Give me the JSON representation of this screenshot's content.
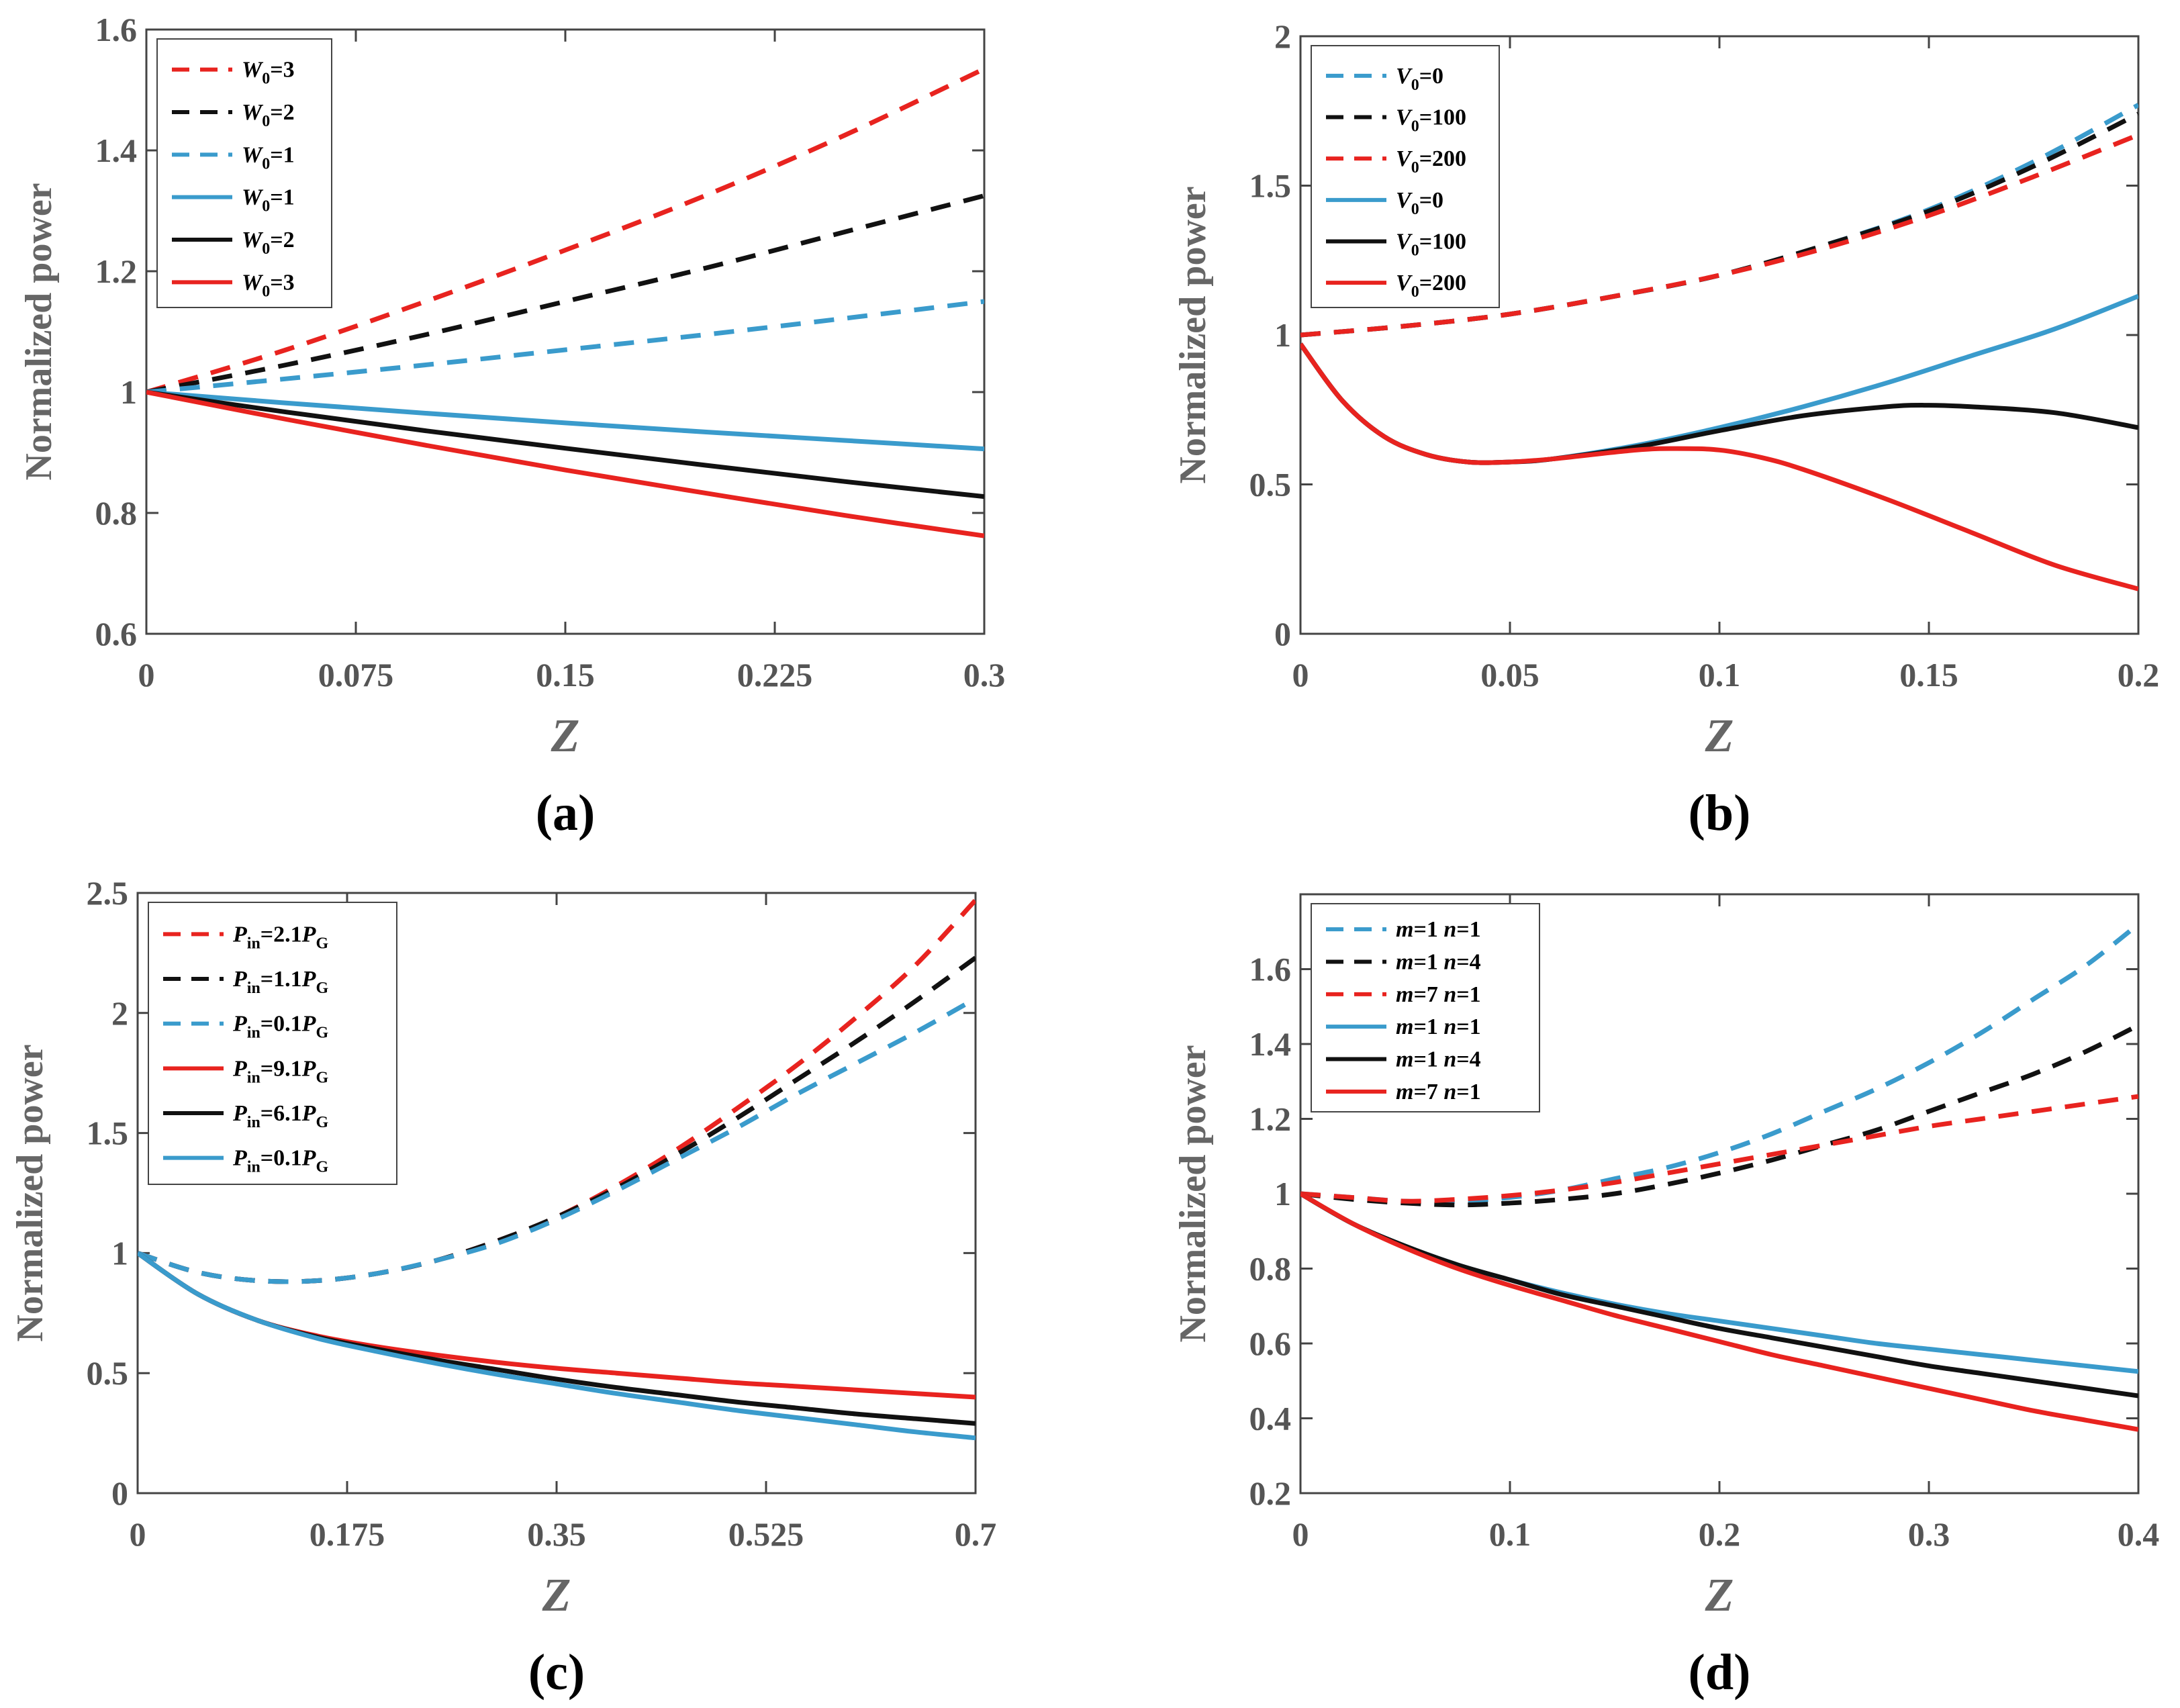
{
  "chart_data": [
    {
      "panel": "(a)",
      "type": "line",
      "xlabel": "Z",
      "ylabel": "Normalized power",
      "xlim": [
        0,
        0.3
      ],
      "ylim": [
        0.6,
        1.6
      ],
      "xticks": [
        0,
        0.075,
        0.15,
        0.225,
        0.3
      ],
      "xtick_labels": [
        "0",
        "0.075",
        "0.15",
        "0.225",
        "0.3"
      ],
      "yticks": [
        0.6,
        0.8,
        1,
        1.2,
        1.4,
        1.6
      ],
      "ytick_labels": [
        "0.6",
        "0.8",
        "1",
        "1.2",
        "1.4",
        "1.6"
      ],
      "legend": "top-left",
      "series": [
        {
          "base": "W",
          "sub": "0",
          "rest": "=3",
          "style": "dashed",
          "color": "#e8231f",
          "x": [
            0,
            0.05,
            0.1,
            0.15,
            0.2,
            0.25,
            0.3
          ],
          "y": [
            1,
            1.07,
            1.15,
            1.235,
            1.325,
            1.425,
            1.535
          ]
        },
        {
          "base": "W",
          "sub": "0",
          "rest": "=2",
          "style": "dashed",
          "color": "#111111",
          "x": [
            0,
            0.05,
            0.1,
            0.15,
            0.2,
            0.25,
            0.3
          ],
          "y": [
            1,
            1.045,
            1.095,
            1.15,
            1.205,
            1.265,
            1.325
          ]
        },
        {
          "base": "W",
          "sub": "0",
          "rest": "=1",
          "style": "dashed",
          "color": "#3a9bcc",
          "x": [
            0,
            0.05,
            0.1,
            0.15,
            0.2,
            0.25,
            0.3
          ],
          "y": [
            1,
            1.022,
            1.045,
            1.07,
            1.095,
            1.122,
            1.15
          ]
        },
        {
          "base": "W",
          "sub": "0",
          "rest": "=1",
          "style": "solid",
          "color": "#3a9bcc",
          "x": [
            0,
            0.05,
            0.1,
            0.15,
            0.2,
            0.25,
            0.3
          ],
          "y": [
            1,
            0.982,
            0.965,
            0.949,
            0.934,
            0.92,
            0.906
          ]
        },
        {
          "base": "W",
          "sub": "0",
          "rest": "=2",
          "style": "solid",
          "color": "#111111",
          "x": [
            0,
            0.05,
            0.1,
            0.15,
            0.2,
            0.25,
            0.3
          ],
          "y": [
            1,
            0.967,
            0.936,
            0.907,
            0.879,
            0.852,
            0.827
          ]
        },
        {
          "base": "W",
          "sub": "0",
          "rest": "=3",
          "style": "solid",
          "color": "#e8231f",
          "x": [
            0,
            0.05,
            0.1,
            0.15,
            0.2,
            0.25,
            0.3
          ],
          "y": [
            1,
            0.955,
            0.912,
            0.871,
            0.833,
            0.796,
            0.762
          ]
        }
      ]
    },
    {
      "panel": "(b)",
      "type": "line",
      "xlabel": "Z",
      "ylabel": "Normalized power",
      "xlim": [
        0,
        0.2
      ],
      "ylim": [
        0,
        2
      ],
      "xticks": [
        0,
        0.05,
        0.1,
        0.15,
        0.2
      ],
      "xtick_labels": [
        "0",
        "0.05",
        "0.1",
        "0.15",
        "0.2"
      ],
      "yticks": [
        0,
        0.5,
        1,
        1.5,
        2
      ],
      "ytick_labels": [
        "0",
        "0.5",
        "1",
        "1.5",
        "2"
      ],
      "legend": "top-left",
      "series": [
        {
          "base": "V",
          "sub": "0",
          "rest": "=0",
          "style": "dashed",
          "color": "#3a9bcc",
          "x": [
            0,
            0.025,
            0.05,
            0.075,
            0.1,
            0.125,
            0.15,
            0.175,
            0.2
          ],
          "y": [
            1,
            1.03,
            1.07,
            1.13,
            1.2,
            1.3,
            1.42,
            1.58,
            1.77
          ]
        },
        {
          "base": "V",
          "sub": "0",
          "rest": "=100",
          "style": "dashed",
          "color": "#111111",
          "x": [
            0,
            0.025,
            0.05,
            0.075,
            0.1,
            0.125,
            0.15,
            0.175,
            0.2
          ],
          "y": [
            1,
            1.03,
            1.07,
            1.13,
            1.2,
            1.3,
            1.415,
            1.565,
            1.74
          ]
        },
        {
          "base": "V",
          "sub": "0",
          "rest": "=200",
          "style": "dashed",
          "color": "#e8231f",
          "x": [
            0,
            0.025,
            0.05,
            0.075,
            0.1,
            0.125,
            0.15,
            0.175,
            0.2
          ],
          "y": [
            1,
            1.03,
            1.07,
            1.13,
            1.2,
            1.29,
            1.4,
            1.53,
            1.67
          ]
        },
        {
          "base": "V",
          "sub": "0",
          "rest": "=0",
          "style": "solid",
          "color": "#3a9bcc",
          "x": [
            0,
            0.01,
            0.02,
            0.03,
            0.04,
            0.05,
            0.06,
            0.08,
            0.1,
            0.12,
            0.14,
            0.16,
            0.18,
            0.2
          ],
          "y": [
            0.97,
            0.78,
            0.66,
            0.6,
            0.575,
            0.575,
            0.585,
            0.63,
            0.69,
            0.76,
            0.84,
            0.93,
            1.02,
            1.13
          ]
        },
        {
          "base": "V",
          "sub": "0",
          "rest": "=100",
          "style": "solid",
          "color": "#111111",
          "x": [
            0,
            0.01,
            0.02,
            0.03,
            0.04,
            0.05,
            0.06,
            0.08,
            0.1,
            0.12,
            0.14,
            0.15,
            0.16,
            0.18,
            0.2
          ],
          "y": [
            0.97,
            0.78,
            0.66,
            0.6,
            0.575,
            0.575,
            0.585,
            0.625,
            0.68,
            0.73,
            0.76,
            0.765,
            0.76,
            0.74,
            0.69
          ]
        },
        {
          "base": "V",
          "sub": "0",
          "rest": "=200",
          "style": "solid",
          "color": "#e8231f",
          "x": [
            0,
            0.01,
            0.02,
            0.03,
            0.04,
            0.05,
            0.06,
            0.08,
            0.09,
            0.1,
            0.11,
            0.12,
            0.14,
            0.16,
            0.18,
            0.2
          ],
          "y": [
            0.97,
            0.78,
            0.66,
            0.6,
            0.575,
            0.575,
            0.585,
            0.615,
            0.62,
            0.615,
            0.59,
            0.55,
            0.45,
            0.34,
            0.23,
            0.15
          ]
        }
      ]
    },
    {
      "panel": "(c)",
      "type": "line",
      "xlabel": "Z",
      "ylabel": "Normalized power",
      "xlim": [
        0,
        0.7
      ],
      "ylim": [
        0,
        2.5
      ],
      "xticks": [
        0,
        0.175,
        0.35,
        0.525,
        0.7
      ],
      "xtick_labels": [
        "0",
        "0.175",
        "0.35",
        "0.525",
        "0.7"
      ],
      "yticks": [
        0,
        0.5,
        1,
        1.5,
        2,
        2.5
      ],
      "ytick_labels": [
        "0",
        "0.5",
        "1",
        "1.5",
        "2",
        "2.5"
      ],
      "legend": "top-left",
      "series": [
        {
          "base": "P",
          "sub": "in",
          "rest": "=2.1",
          "base2": "P",
          "sub2": "G",
          "style": "dashed",
          "color": "#e8231f",
          "x": [
            0,
            0.05,
            0.1,
            0.15,
            0.2,
            0.25,
            0.3,
            0.35,
            0.4,
            0.45,
            0.5,
            0.55,
            0.6,
            0.65,
            0.7
          ],
          "y": [
            1,
            0.92,
            0.885,
            0.885,
            0.915,
            0.97,
            1.05,
            1.15,
            1.28,
            1.43,
            1.6,
            1.78,
            1.98,
            2.2,
            2.47
          ]
        },
        {
          "base": "P",
          "sub": "in",
          "rest": "=1.1",
          "base2": "P",
          "sub2": "G",
          "style": "dashed",
          "color": "#111111",
          "x": [
            0,
            0.05,
            0.1,
            0.15,
            0.2,
            0.25,
            0.3,
            0.35,
            0.4,
            0.45,
            0.5,
            0.55,
            0.6,
            0.65,
            0.7
          ],
          "y": [
            1,
            0.92,
            0.885,
            0.885,
            0.915,
            0.97,
            1.05,
            1.15,
            1.27,
            1.41,
            1.56,
            1.72,
            1.88,
            2.05,
            2.23
          ]
        },
        {
          "base": "P",
          "sub": "in",
          "rest": "=0.1",
          "base2": "P",
          "sub2": "G",
          "style": "dashed",
          "color": "#3a9bcc",
          "x": [
            0,
            0.05,
            0.1,
            0.15,
            0.2,
            0.25,
            0.3,
            0.35,
            0.4,
            0.45,
            0.5,
            0.55,
            0.6,
            0.65,
            0.7
          ],
          "y": [
            1,
            0.92,
            0.885,
            0.885,
            0.915,
            0.97,
            1.04,
            1.14,
            1.26,
            1.39,
            1.52,
            1.66,
            1.79,
            1.92,
            2.06
          ]
        },
        {
          "base": "P",
          "sub": "in",
          "rest": "=9.1",
          "base2": "P",
          "sub2": "G",
          "style": "solid",
          "color": "#e8231f",
          "x": [
            0,
            0.05,
            0.1,
            0.15,
            0.2,
            0.25,
            0.3,
            0.35,
            0.4,
            0.45,
            0.5,
            0.55,
            0.6,
            0.65,
            0.7
          ],
          "y": [
            1,
            0.83,
            0.72,
            0.655,
            0.61,
            0.575,
            0.545,
            0.52,
            0.5,
            0.48,
            0.46,
            0.445,
            0.43,
            0.415,
            0.4
          ]
        },
        {
          "base": "P",
          "sub": "in",
          "rest": "=6.1",
          "base2": "P",
          "sub2": "G",
          "style": "solid",
          "color": "#111111",
          "x": [
            0,
            0.05,
            0.1,
            0.15,
            0.2,
            0.25,
            0.3,
            0.35,
            0.4,
            0.45,
            0.5,
            0.55,
            0.6,
            0.65,
            0.7
          ],
          "y": [
            1,
            0.83,
            0.72,
            0.65,
            0.6,
            0.555,
            0.515,
            0.475,
            0.44,
            0.41,
            0.38,
            0.355,
            0.33,
            0.31,
            0.29
          ]
        },
        {
          "base": "P",
          "sub": "in",
          "rest": "=0.1",
          "base2": "P",
          "sub2": "G",
          "style": "solid",
          "color": "#3a9bcc",
          "x": [
            0,
            0.05,
            0.1,
            0.15,
            0.2,
            0.25,
            0.3,
            0.35,
            0.4,
            0.45,
            0.5,
            0.55,
            0.6,
            0.65,
            0.7
          ],
          "y": [
            1,
            0.83,
            0.72,
            0.645,
            0.59,
            0.54,
            0.495,
            0.455,
            0.415,
            0.38,
            0.345,
            0.315,
            0.285,
            0.255,
            0.23
          ]
        }
      ]
    },
    {
      "panel": "(d)",
      "type": "line",
      "xlabel": "Z",
      "ylabel": "Normalized power",
      "xlim": [
        0,
        0.4
      ],
      "ylim": [
        0.2,
        1.8
      ],
      "xticks": [
        0,
        0.1,
        0.2,
        0.3,
        0.4
      ],
      "xtick_labels": [
        "0",
        "0.1",
        "0.2",
        "0.3",
        "0.4"
      ],
      "yticks": [
        0.2,
        0.4,
        0.6,
        0.8,
        1,
        1.2,
        1.4,
        1.6
      ],
      "ytick_labels": [
        "0.2",
        "0.4",
        "0.6",
        "0.8",
        "1",
        "1.2",
        "1.4",
        "1.6"
      ],
      "legend": "top-left",
      "series": [
        {
          "m": "1",
          "n": "1",
          "style": "dashed",
          "color": "#3a9bcc",
          "x": [
            0,
            0.025,
            0.05,
            0.075,
            0.1,
            0.125,
            0.15,
            0.175,
            0.2,
            0.225,
            0.25,
            0.275,
            0.3,
            0.325,
            0.35,
            0.375,
            0.4
          ],
          "y": [
            1,
            0.99,
            0.98,
            0.98,
            0.99,
            1.01,
            1.04,
            1.07,
            1.11,
            1.16,
            1.22,
            1.28,
            1.35,
            1.43,
            1.52,
            1.61,
            1.72
          ]
        },
        {
          "m": "1",
          "n": "4",
          "style": "dashed",
          "color": "#111111",
          "x": [
            0,
            0.025,
            0.05,
            0.075,
            0.1,
            0.125,
            0.15,
            0.175,
            0.2,
            0.225,
            0.25,
            0.275,
            0.3,
            0.325,
            0.35,
            0.375,
            0.4
          ],
          "y": [
            1,
            0.985,
            0.975,
            0.97,
            0.975,
            0.985,
            1.0,
            1.025,
            1.055,
            1.09,
            1.13,
            1.17,
            1.22,
            1.27,
            1.32,
            1.38,
            1.45
          ]
        },
        {
          "m": "7",
          "n": "1",
          "style": "dashed",
          "color": "#e8231f",
          "x": [
            0,
            0.025,
            0.05,
            0.075,
            0.1,
            0.125,
            0.15,
            0.175,
            0.2,
            0.225,
            0.25,
            0.275,
            0.3,
            0.325,
            0.35,
            0.375,
            0.4
          ],
          "y": [
            1,
            0.99,
            0.98,
            0.985,
            0.995,
            1.01,
            1.03,
            1.055,
            1.08,
            1.105,
            1.13,
            1.155,
            1.18,
            1.2,
            1.22,
            1.24,
            1.26
          ]
        },
        {
          "m": "1",
          "n": "1",
          "style": "solid",
          "color": "#3a9bcc",
          "x": [
            0,
            0.025,
            0.05,
            0.075,
            0.1,
            0.125,
            0.15,
            0.175,
            0.2,
            0.225,
            0.25,
            0.275,
            0.3,
            0.325,
            0.35,
            0.375,
            0.4
          ],
          "y": [
            1,
            0.92,
            0.86,
            0.81,
            0.77,
            0.735,
            0.705,
            0.68,
            0.66,
            0.64,
            0.62,
            0.6,
            0.585,
            0.57,
            0.555,
            0.54,
            0.525
          ]
        },
        {
          "m": "1",
          "n": "4",
          "style": "solid",
          "color": "#111111",
          "x": [
            0,
            0.025,
            0.05,
            0.075,
            0.1,
            0.125,
            0.15,
            0.175,
            0.2,
            0.225,
            0.25,
            0.275,
            0.3,
            0.325,
            0.35,
            0.375,
            0.4
          ],
          "y": [
            1,
            0.92,
            0.86,
            0.81,
            0.77,
            0.73,
            0.7,
            0.67,
            0.64,
            0.615,
            0.59,
            0.565,
            0.54,
            0.52,
            0.5,
            0.48,
            0.46
          ]
        },
        {
          "m": "7",
          "n": "1",
          "style": "solid",
          "color": "#e8231f",
          "x": [
            0,
            0.025,
            0.05,
            0.075,
            0.1,
            0.125,
            0.15,
            0.175,
            0.2,
            0.225,
            0.25,
            0.275,
            0.3,
            0.325,
            0.35,
            0.375,
            0.4
          ],
          "y": [
            1,
            0.92,
            0.855,
            0.8,
            0.755,
            0.715,
            0.675,
            0.64,
            0.605,
            0.57,
            0.54,
            0.51,
            0.48,
            0.45,
            0.42,
            0.395,
            0.37
          ]
        }
      ]
    }
  ]
}
